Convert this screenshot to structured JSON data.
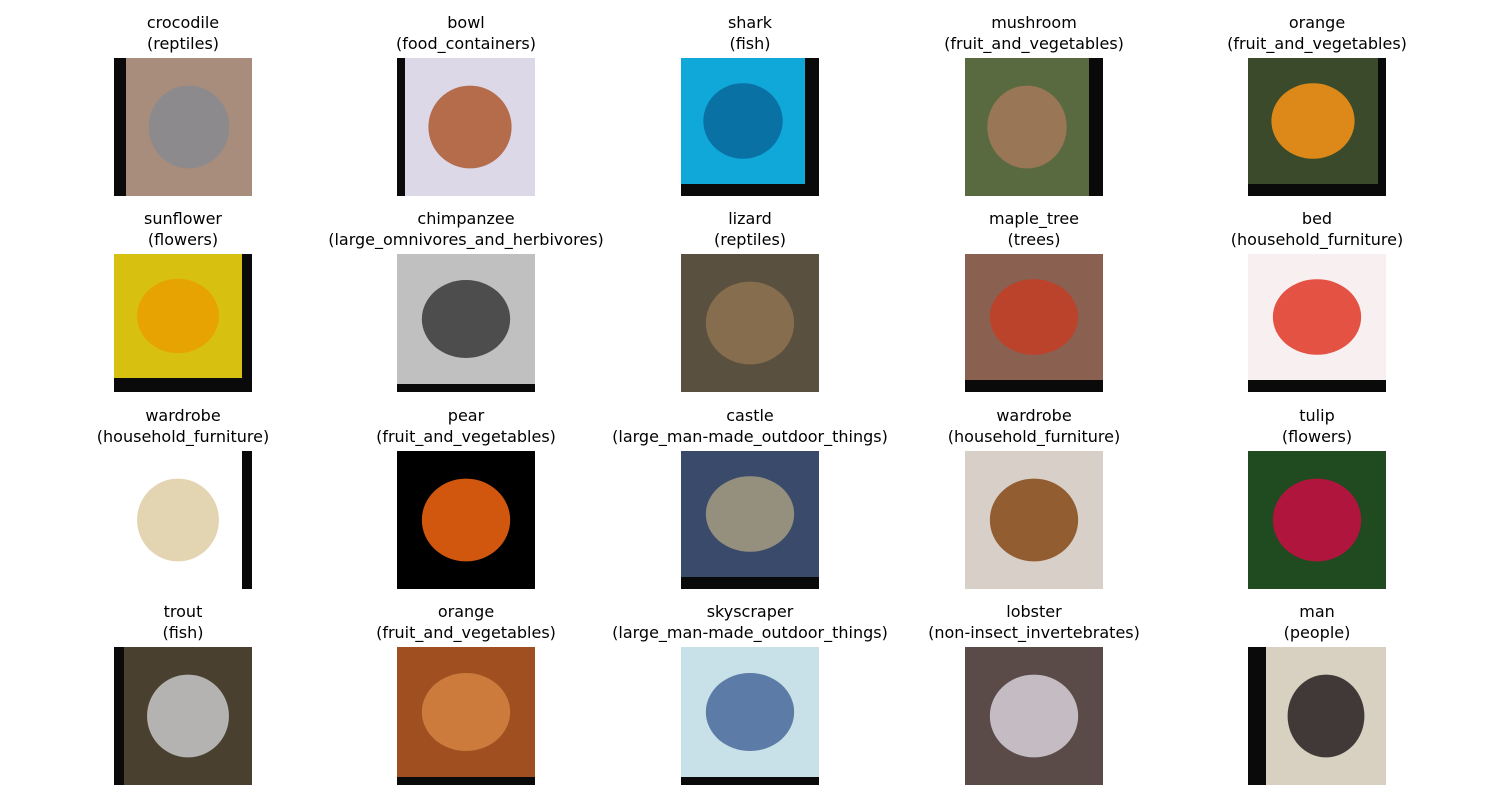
{
  "items": [
    {
      "label": "crocodile",
      "group": "(reptiles)"
    },
    {
      "label": "bowl",
      "group": "(food_containers)"
    },
    {
      "label": "shark",
      "group": "(fish)"
    },
    {
      "label": "mushroom",
      "group": "(fruit_and_vegetables)"
    },
    {
      "label": "orange",
      "group": "(fruit_and_vegetables)"
    },
    {
      "label": "sunflower",
      "group": "(flowers)"
    },
    {
      "label": "chimpanzee",
      "group": "(large_omnivores_and_herbivores)"
    },
    {
      "label": "lizard",
      "group": "(reptiles)"
    },
    {
      "label": "maple_tree",
      "group": "(trees)"
    },
    {
      "label": "bed",
      "group": "(household_furniture)"
    },
    {
      "label": "wardrobe",
      "group": "(household_furniture)"
    },
    {
      "label": "pear",
      "group": "(fruit_and_vegetables)"
    },
    {
      "label": "castle",
      "group": "(large_man-made_outdoor_things)"
    },
    {
      "label": "wardrobe",
      "group": "(household_furniture)"
    },
    {
      "label": "tulip",
      "group": "(flowers)"
    },
    {
      "label": "trout",
      "group": "(fish)"
    },
    {
      "label": "orange",
      "group": "(fruit_and_vegetables)"
    },
    {
      "label": "skyscraper",
      "group": "(large_man-made_outdoor_things)"
    },
    {
      "label": "lobster",
      "group": "(non-insect_invertebrates)"
    },
    {
      "label": "man",
      "group": "(people)"
    }
  ]
}
